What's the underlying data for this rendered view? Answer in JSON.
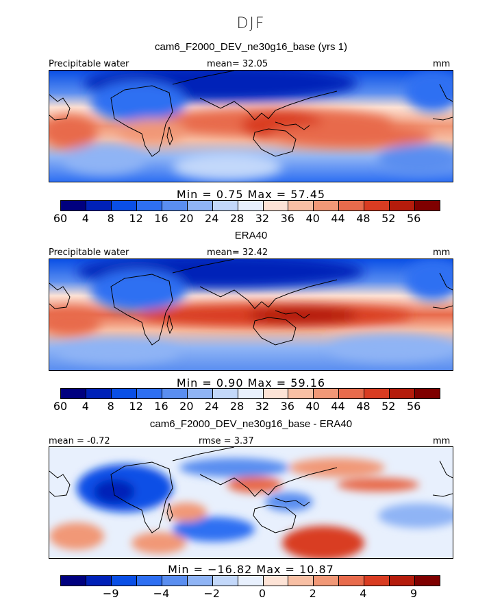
{
  "season": "DJF",
  "palette": [
    "#00007f",
    "#0021b8",
    "#0a4fe6",
    "#2e6ff2",
    "#5a8ef0",
    "#8fb4f5",
    "#c3d8fa",
    "#e8f0fd",
    "#fde3d6",
    "#f8bfa4",
    "#f19877",
    "#e86b4c",
    "#d93c22",
    "#b51c0c",
    "#7f0000"
  ],
  "panels": [
    {
      "title": "cam6_F2000_DEV_ne30g16_base (yrs 1)",
      "left_label": "Precipitable water",
      "center_label": "mean=  32.05",
      "unit": "mm",
      "minmax": "Min =    0.75  Max =   57.45",
      "ticks": [
        "4",
        "8",
        "12",
        "16",
        "20",
        "24",
        "28",
        "32",
        "36",
        "40",
        "44",
        "48",
        "52",
        "56",
        "60"
      ]
    },
    {
      "title": "ERA40",
      "left_label": "Precipitable water",
      "center_label": "mean=  32.42",
      "unit": "mm",
      "minmax": "Min =    0.90  Max =   59.16",
      "ticks": [
        "4",
        "8",
        "12",
        "16",
        "20",
        "24",
        "28",
        "32",
        "36",
        "40",
        "44",
        "48",
        "52",
        "56",
        "60"
      ]
    },
    {
      "title": "cam6_F2000_DEV_ne30g16_base - ERA40",
      "left_label": "mean =  -0.72",
      "center_label": "rmse =   3.37",
      "unit": "mm",
      "minmax": "Min = −16.82  Max =  10.87",
      "ticks": [
        "−9",
        "−4",
        "−2",
        "0",
        "2",
        "4",
        "9"
      ]
    }
  ]
}
